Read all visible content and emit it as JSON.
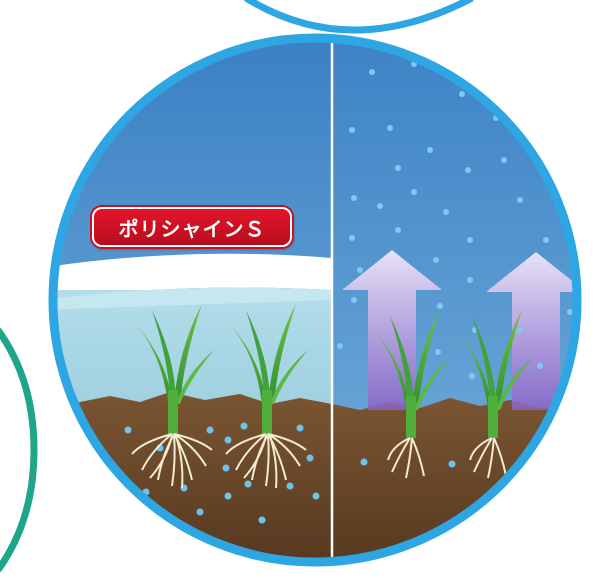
{
  "badge": {
    "label": "ポリシャインＳ"
  },
  "colors": {
    "ring": "#2ea6e3",
    "teal_ring": "#1ea58a",
    "sky": "#3f86c9",
    "water_film": "#ffffff",
    "water": "#a9d8e6",
    "soil": "#6b4a2b",
    "badge": "#d7131f",
    "plant": "#3aa33b",
    "root": "#f2ecd0",
    "bubble": "#6cc4ee",
    "arrow": "#b7a6d8"
  },
  "icons": {
    "plant": "rice-seedling-icon",
    "arrow": "evaporation-arrow-icon",
    "bubble": "water-bubble-icon"
  }
}
